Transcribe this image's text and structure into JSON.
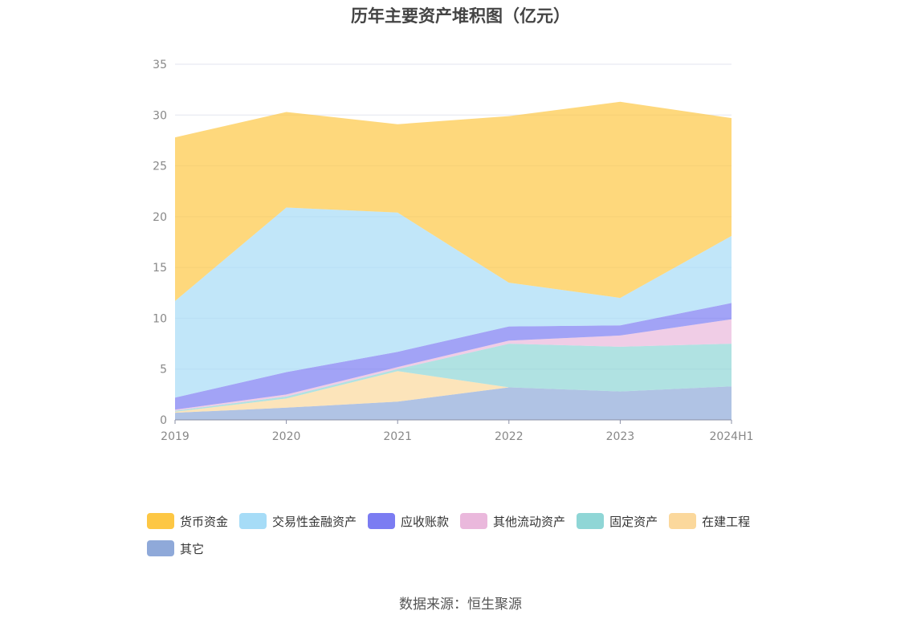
{
  "chart_data": {
    "type": "area",
    "stacked": true,
    "title": "历年主要资产堆积图（亿元）",
    "x": [
      "2019",
      "2020",
      "2021",
      "2022",
      "2023",
      "2024H1"
    ],
    "ylim": [
      0,
      35
    ],
    "yticks": [
      "0",
      "5",
      "10",
      "15",
      "20",
      "25",
      "30",
      "35"
    ],
    "grid": true,
    "legend_position": "bottom",
    "series": [
      {
        "name": "其它",
        "color": "#8fa9d9",
        "values": [
          0.7,
          1.2,
          1.8,
          3.2,
          2.8,
          3.3
        ]
      },
      {
        "name": "在建工程",
        "color": "#fbd89c",
        "values": [
          0.1,
          0.9,
          3.0,
          0.0,
          0.0,
          0.0
        ]
      },
      {
        "name": "固定资产",
        "color": "#8fd6d6",
        "values": [
          0.1,
          0.2,
          0.2,
          4.3,
          4.4,
          4.2
        ]
      },
      {
        "name": "其他流动资产",
        "color": "#eab8dc",
        "values": [
          0.1,
          0.2,
          0.2,
          0.3,
          1.1,
          2.4
        ]
      },
      {
        "name": "应收账款",
        "color": "#7b7cf2",
        "values": [
          1.2,
          2.2,
          1.5,
          1.4,
          1.0,
          1.6
        ]
      },
      {
        "name": "交易性金融资产",
        "color": "#a6dcf7",
        "values": [
          9.5,
          16.2,
          13.7,
          4.3,
          2.7,
          6.6
        ]
      },
      {
        "name": "货币资金",
        "color": "#fdc744",
        "values": [
          16.1,
          9.4,
          8.7,
          16.4,
          19.3,
          11.6
        ]
      }
    ],
    "legend_order": [
      "货币资金",
      "交易性金融资产",
      "应收账款",
      "其他流动资产",
      "固定资产",
      "在建工程",
      "其它"
    ]
  },
  "source_note": "数据来源：恒生聚源"
}
